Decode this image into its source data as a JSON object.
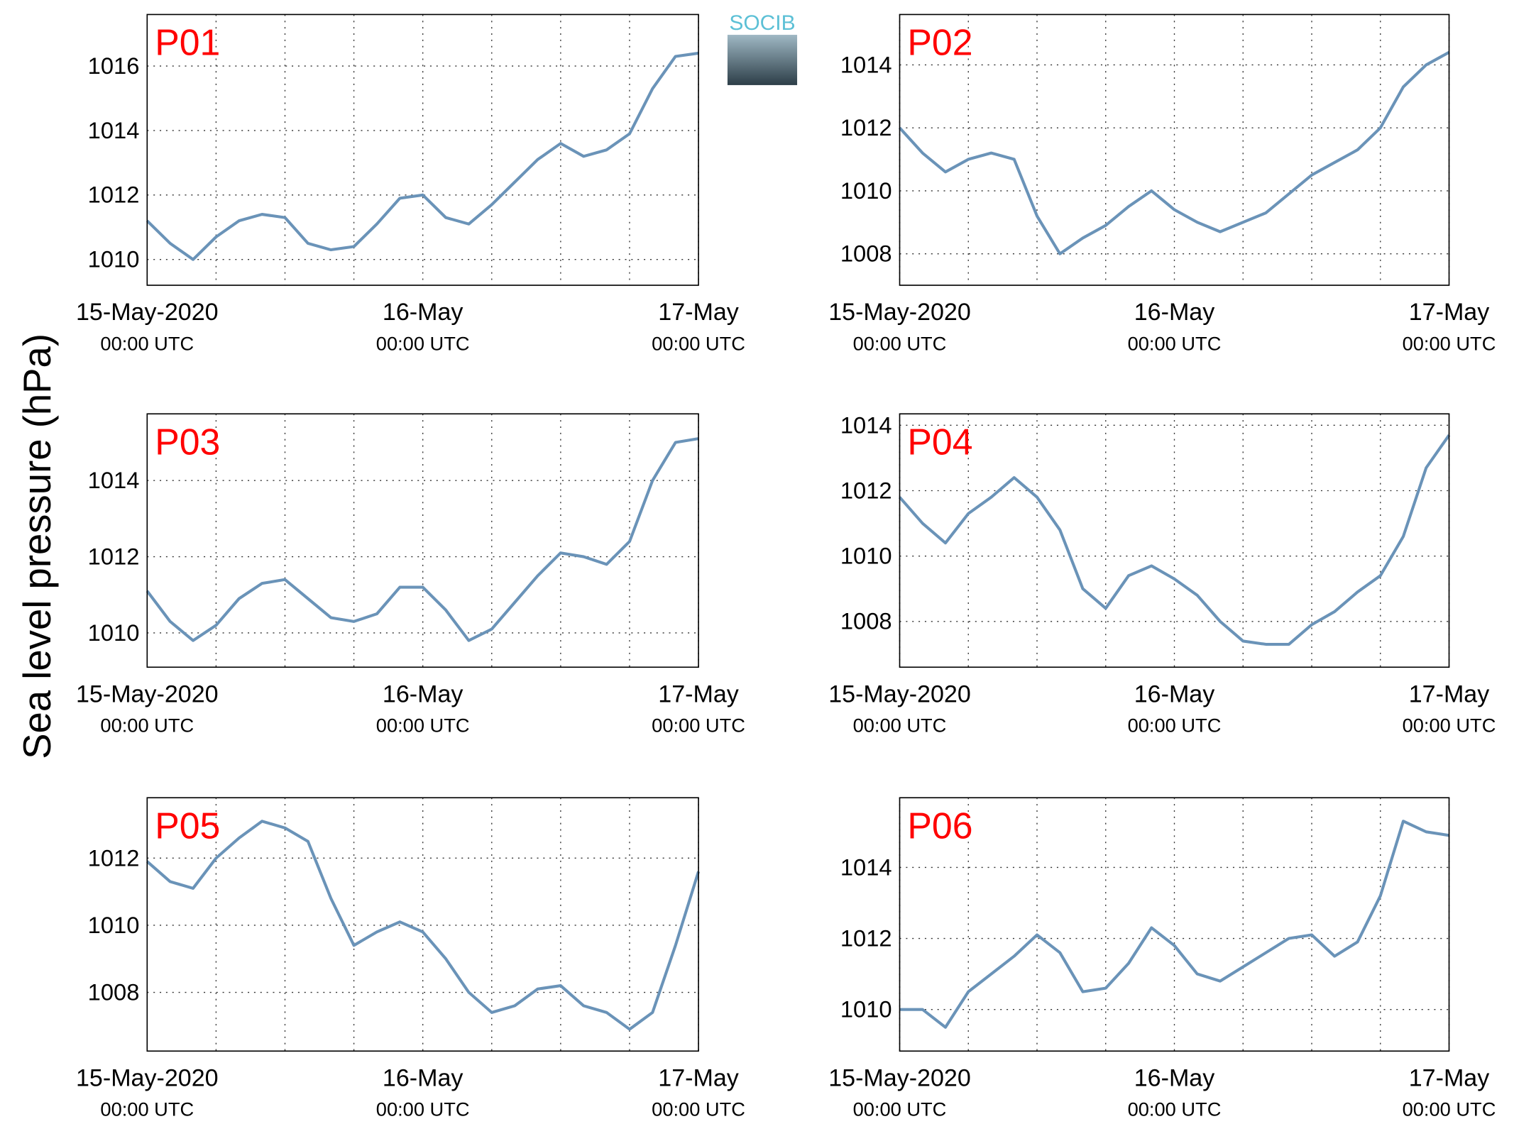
{
  "ylabel": "Sea level pressure (hPa)",
  "logo": "SOCIB",
  "chart_data": [
    {
      "type": "line",
      "title": "P01",
      "title_color": "#ff0000",
      "x": [
        0,
        2,
        4,
        6,
        8,
        10,
        12,
        14,
        16,
        18,
        20,
        22,
        24,
        26,
        28,
        30,
        32,
        34,
        36,
        38,
        40,
        42,
        44,
        46,
        48
      ],
      "series": [
        {
          "color": "#6a93b8",
          "values": [
            1011.2,
            1010.5,
            1010.0,
            1010.7,
            1011.2,
            1011.4,
            1011.3,
            1010.5,
            1010.3,
            1010.4,
            1011.1,
            1011.9,
            1012.0,
            1011.3,
            1011.1,
            1011.7,
            1012.4,
            1013.1,
            1013.6,
            1013.2,
            1013.4,
            1013.9,
            1015.3,
            1016.3,
            1016.4
          ]
        }
      ],
      "xlim": [
        0,
        48
      ],
      "xticks": [
        {
          "value": 0,
          "label": "15-May-2020",
          "time": "00:00 UTC"
        },
        {
          "value": 24,
          "label": "16-May",
          "time": "00:00 UTC"
        },
        {
          "value": 48,
          "label": "17-May",
          "time": "00:00 UTC"
        }
      ],
      "xminor": [
        6,
        12,
        18,
        30,
        36,
        42
      ],
      "ylim": [
        1009.2,
        1017.6
      ],
      "yticks": [
        1010,
        1012,
        1014,
        1016
      ],
      "grid": true
    },
    {
      "type": "line",
      "title": "P02",
      "title_color": "#ff0000",
      "x": [
        0,
        2,
        4,
        6,
        8,
        10,
        12,
        14,
        16,
        18,
        20,
        22,
        24,
        26,
        28,
        30,
        32,
        34,
        36,
        38,
        40,
        42,
        44,
        46,
        48
      ],
      "series": [
        {
          "color": "#6a93b8",
          "values": [
            1012.0,
            1011.2,
            1010.6,
            1011.0,
            1011.2,
            1011.0,
            1009.2,
            1008.0,
            1008.5,
            1008.9,
            1009.5,
            1010.0,
            1009.4,
            1009.0,
            1008.7,
            1009.0,
            1009.3,
            1009.9,
            1010.5,
            1010.9,
            1011.3,
            1012.0,
            1013.3,
            1014.0,
            1014.4
          ]
        }
      ],
      "xlim": [
        0,
        48
      ],
      "xticks": [
        {
          "value": 0,
          "label": "15-May-2020",
          "time": "00:00 UTC"
        },
        {
          "value": 24,
          "label": "16-May",
          "time": "00:00 UTC"
        },
        {
          "value": 48,
          "label": "17-May",
          "time": "00:00 UTC"
        }
      ],
      "xminor": [
        6,
        12,
        18,
        30,
        36,
        42
      ],
      "ylim": [
        1007.0,
        1015.6
      ],
      "yticks": [
        1008,
        1010,
        1012,
        1014
      ],
      "grid": true
    },
    {
      "type": "line",
      "title": "P03",
      "title_color": "#ff0000",
      "x": [
        0,
        2,
        4,
        6,
        8,
        10,
        12,
        14,
        16,
        18,
        20,
        22,
        24,
        26,
        28,
        30,
        32,
        34,
        36,
        38,
        40,
        42,
        44,
        46,
        48
      ],
      "series": [
        {
          "color": "#6a93b8",
          "values": [
            1011.1,
            1010.3,
            1009.8,
            1010.2,
            1010.9,
            1011.3,
            1011.4,
            1010.9,
            1010.4,
            1010.3,
            1010.5,
            1011.2,
            1011.2,
            1010.6,
            1009.8,
            1010.1,
            1010.8,
            1011.5,
            1012.1,
            1012.0,
            1011.8,
            1012.4,
            1014.0,
            1015.0,
            1015.1
          ]
        }
      ],
      "xlim": [
        0,
        48
      ],
      "xticks": [
        {
          "value": 0,
          "label": "15-May-2020",
          "time": "00:00 UTC"
        },
        {
          "value": 24,
          "label": "16-May",
          "time": "00:00 UTC"
        },
        {
          "value": 48,
          "label": "17-May",
          "time": "00:00 UTC"
        }
      ],
      "xminor": [
        6,
        12,
        18,
        30,
        36,
        42
      ],
      "ylim": [
        1009.1,
        1015.75
      ],
      "yticks": [
        1010,
        1012,
        1014
      ],
      "grid": true
    },
    {
      "type": "line",
      "title": "P04",
      "title_color": "#ff0000",
      "x": [
        0,
        2,
        4,
        6,
        8,
        10,
        12,
        14,
        16,
        18,
        20,
        22,
        24,
        26,
        28,
        30,
        32,
        34,
        36,
        38,
        40,
        42,
        44,
        46,
        48
      ],
      "series": [
        {
          "color": "#6a93b8",
          "values": [
            1011.8,
            1011.0,
            1010.4,
            1011.3,
            1011.8,
            1012.4,
            1011.8,
            1010.8,
            1009.0,
            1008.4,
            1009.4,
            1009.7,
            1009.3,
            1008.8,
            1008.0,
            1007.4,
            1007.3,
            1007.3,
            1007.9,
            1008.3,
            1008.9,
            1009.4,
            1010.6,
            1012.7,
            1013.7
          ]
        }
      ],
      "xlim": [
        0,
        48
      ],
      "xticks": [
        {
          "value": 0,
          "label": "15-May-2020",
          "time": "00:00 UTC"
        },
        {
          "value": 24,
          "label": "16-May",
          "time": "00:00 UTC"
        },
        {
          "value": 48,
          "label": "17-May",
          "time": "00:00 UTC"
        }
      ],
      "xminor": [
        6,
        12,
        18,
        30,
        36,
        42
      ],
      "ylim": [
        1006.6,
        1014.35
      ],
      "yticks": [
        1008,
        1010,
        1012,
        1014
      ],
      "grid": true
    },
    {
      "type": "line",
      "title": "P05",
      "title_color": "#ff0000",
      "x": [
        0,
        2,
        4,
        6,
        8,
        10,
        12,
        14,
        16,
        18,
        20,
        22,
        24,
        26,
        28,
        30,
        32,
        34,
        36,
        38,
        40,
        42,
        44,
        46,
        48
      ],
      "series": [
        {
          "color": "#6a93b8",
          "values": [
            1011.9,
            1011.3,
            1011.1,
            1012.0,
            1012.6,
            1013.1,
            1012.9,
            1012.5,
            1010.8,
            1009.4,
            1009.8,
            1010.1,
            1009.8,
            1009.0,
            1008.0,
            1007.4,
            1007.6,
            1008.1,
            1008.2,
            1007.6,
            1007.4,
            1006.9,
            1007.4,
            1009.4,
            1011.6
          ]
        }
      ],
      "xlim": [
        0,
        48
      ],
      "xticks": [
        {
          "value": 0,
          "label": "15-May-2020",
          "time": "00:00 UTC"
        },
        {
          "value": 24,
          "label": "16-May",
          "time": "00:00 UTC"
        },
        {
          "value": 48,
          "label": "17-May",
          "time": "00:00 UTC"
        }
      ],
      "xminor": [
        6,
        12,
        18,
        30,
        36,
        42
      ],
      "ylim": [
        1006.25,
        1013.8
      ],
      "yticks": [
        1008,
        1010,
        1012
      ],
      "grid": true
    },
    {
      "type": "line",
      "title": "P06",
      "title_color": "#ff0000",
      "x": [
        0,
        2,
        4,
        6,
        8,
        10,
        12,
        14,
        16,
        18,
        20,
        22,
        24,
        26,
        28,
        30,
        32,
        34,
        36,
        38,
        40,
        42,
        44,
        46,
        48
      ],
      "series": [
        {
          "color": "#6a93b8",
          "values": [
            1010.0,
            1010.0,
            1009.5,
            1010.5,
            1011.0,
            1011.5,
            1012.1,
            1011.6,
            1010.5,
            1010.6,
            1011.3,
            1012.3,
            1011.8,
            1011.0,
            1010.8,
            1011.2,
            1011.6,
            1012.0,
            1012.1,
            1011.5,
            1011.9,
            1013.2,
            1015.3,
            1015.0,
            1014.9
          ]
        }
      ],
      "xlim": [
        0,
        48
      ],
      "xticks": [
        {
          "value": 0,
          "label": "15-May-2020",
          "time": "00:00 UTC"
        },
        {
          "value": 24,
          "label": "16-May",
          "time": "00:00 UTC"
        },
        {
          "value": 48,
          "label": "17-May",
          "time": "00:00 UTC"
        }
      ],
      "xminor": [
        6,
        12,
        18,
        30,
        36,
        42
      ],
      "ylim": [
        1008.83,
        1015.96
      ],
      "yticks": [
        1010,
        1012,
        1014
      ],
      "grid": true
    }
  ]
}
